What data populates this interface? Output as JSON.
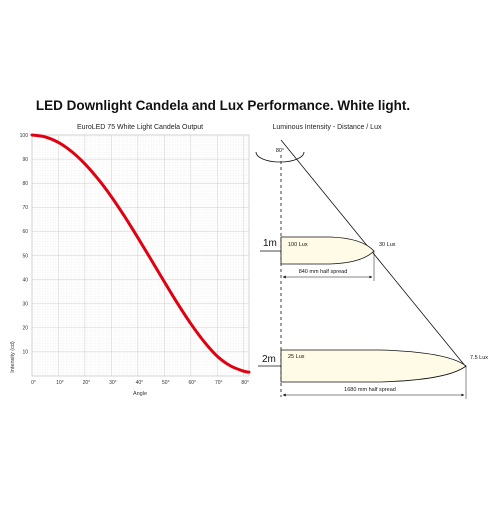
{
  "title": "LED Downlight Candela and Lux Performance. White light.",
  "chart_data": {
    "type": "line",
    "title": "EuroLED 75 White Light Candela Output",
    "xlabel": "Angle",
    "ylabel": "Intensity (cd)",
    "x_ticks": [
      "0°",
      "10°",
      "20°",
      "30°",
      "40°",
      "50°",
      "60°",
      "70°",
      "80°"
    ],
    "y_ticks": [
      "10",
      "20",
      "30",
      "40",
      "50",
      "60",
      "70",
      "80",
      "90",
      "100"
    ],
    "xlim": [
      0,
      82
    ],
    "ylim": [
      0,
      100
    ],
    "grid": true,
    "line_color": "#e0000f",
    "series": [
      {
        "x": [
          0,
          5,
          10,
          15,
          20,
          25,
          30,
          35,
          40,
          45,
          50,
          55,
          60,
          65,
          70,
          75,
          80,
          82
        ],
        "values": [
          100,
          99.2,
          96.9,
          93.1,
          88,
          81.7,
          74.4,
          66.2,
          57.4,
          48.3,
          39.1,
          30.1,
          21.7,
          14.3,
          8.2,
          4.2,
          2,
          1.6
        ]
      }
    ]
  },
  "diagram": {
    "title": "Luminous Intensity - Distance / Lux",
    "angle_label": "80°",
    "distance_1": "1m",
    "distance_2": "2m",
    "lux_center_1": "100 Lux",
    "lux_edge_1": "30 Lux",
    "spread_1": "840 mm half spread",
    "lux_center_2": "25 Lux",
    "lux_edge_2": "7.5 Lux",
    "spread_2": "1680 mm half spread",
    "beam_fill": "#fffbe6"
  }
}
